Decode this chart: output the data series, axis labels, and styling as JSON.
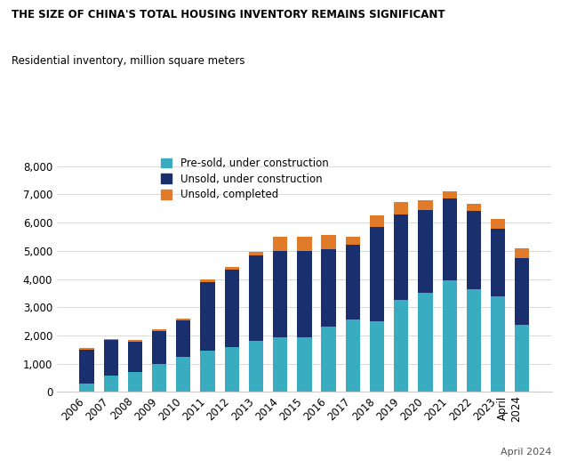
{
  "title": "THE SIZE OF CHINA'S TOTAL HOUSING INVENTORY REMAINS SIGNIFICANT",
  "subtitle": "Residential inventory, million square meters",
  "years": [
    "2006",
    "2007",
    "2008",
    "2009",
    "2010",
    "2011",
    "2012",
    "2013",
    "2014",
    "2015",
    "2016",
    "2017",
    "2018",
    "2019",
    "2020",
    "2021",
    "2022",
    "2023",
    "April\n2024"
  ],
  "pre_sold_under_construction": [
    300,
    580,
    690,
    1000,
    1250,
    1450,
    1580,
    1800,
    1950,
    1950,
    2300,
    2550,
    2500,
    3250,
    3500,
    3950,
    3650,
    3380,
    2380
  ],
  "unsold_under_construction": [
    1200,
    1250,
    1100,
    1150,
    1280,
    2450,
    2750,
    3050,
    3050,
    3050,
    2750,
    2680,
    3350,
    3050,
    2950,
    2900,
    2750,
    2400,
    2350
  ],
  "unsold_completed": [
    50,
    55,
    55,
    55,
    55,
    100,
    100,
    100,
    500,
    500,
    500,
    280,
    420,
    420,
    350,
    250,
    280,
    350,
    350
  ],
  "color_pre_sold": "#3aacbf",
  "color_unsold_construction": "#1a2f6e",
  "color_unsold_completed": "#e07b2a",
  "ylim": [
    0,
    8500
  ],
  "yticks": [
    0,
    1000,
    2000,
    3000,
    4000,
    5000,
    6000,
    7000,
    8000
  ],
  "legend_labels": [
    "Pre-sold, under construction",
    "Unsold, under construction",
    "Unsold, completed"
  ],
  "background_color": "#ffffff"
}
